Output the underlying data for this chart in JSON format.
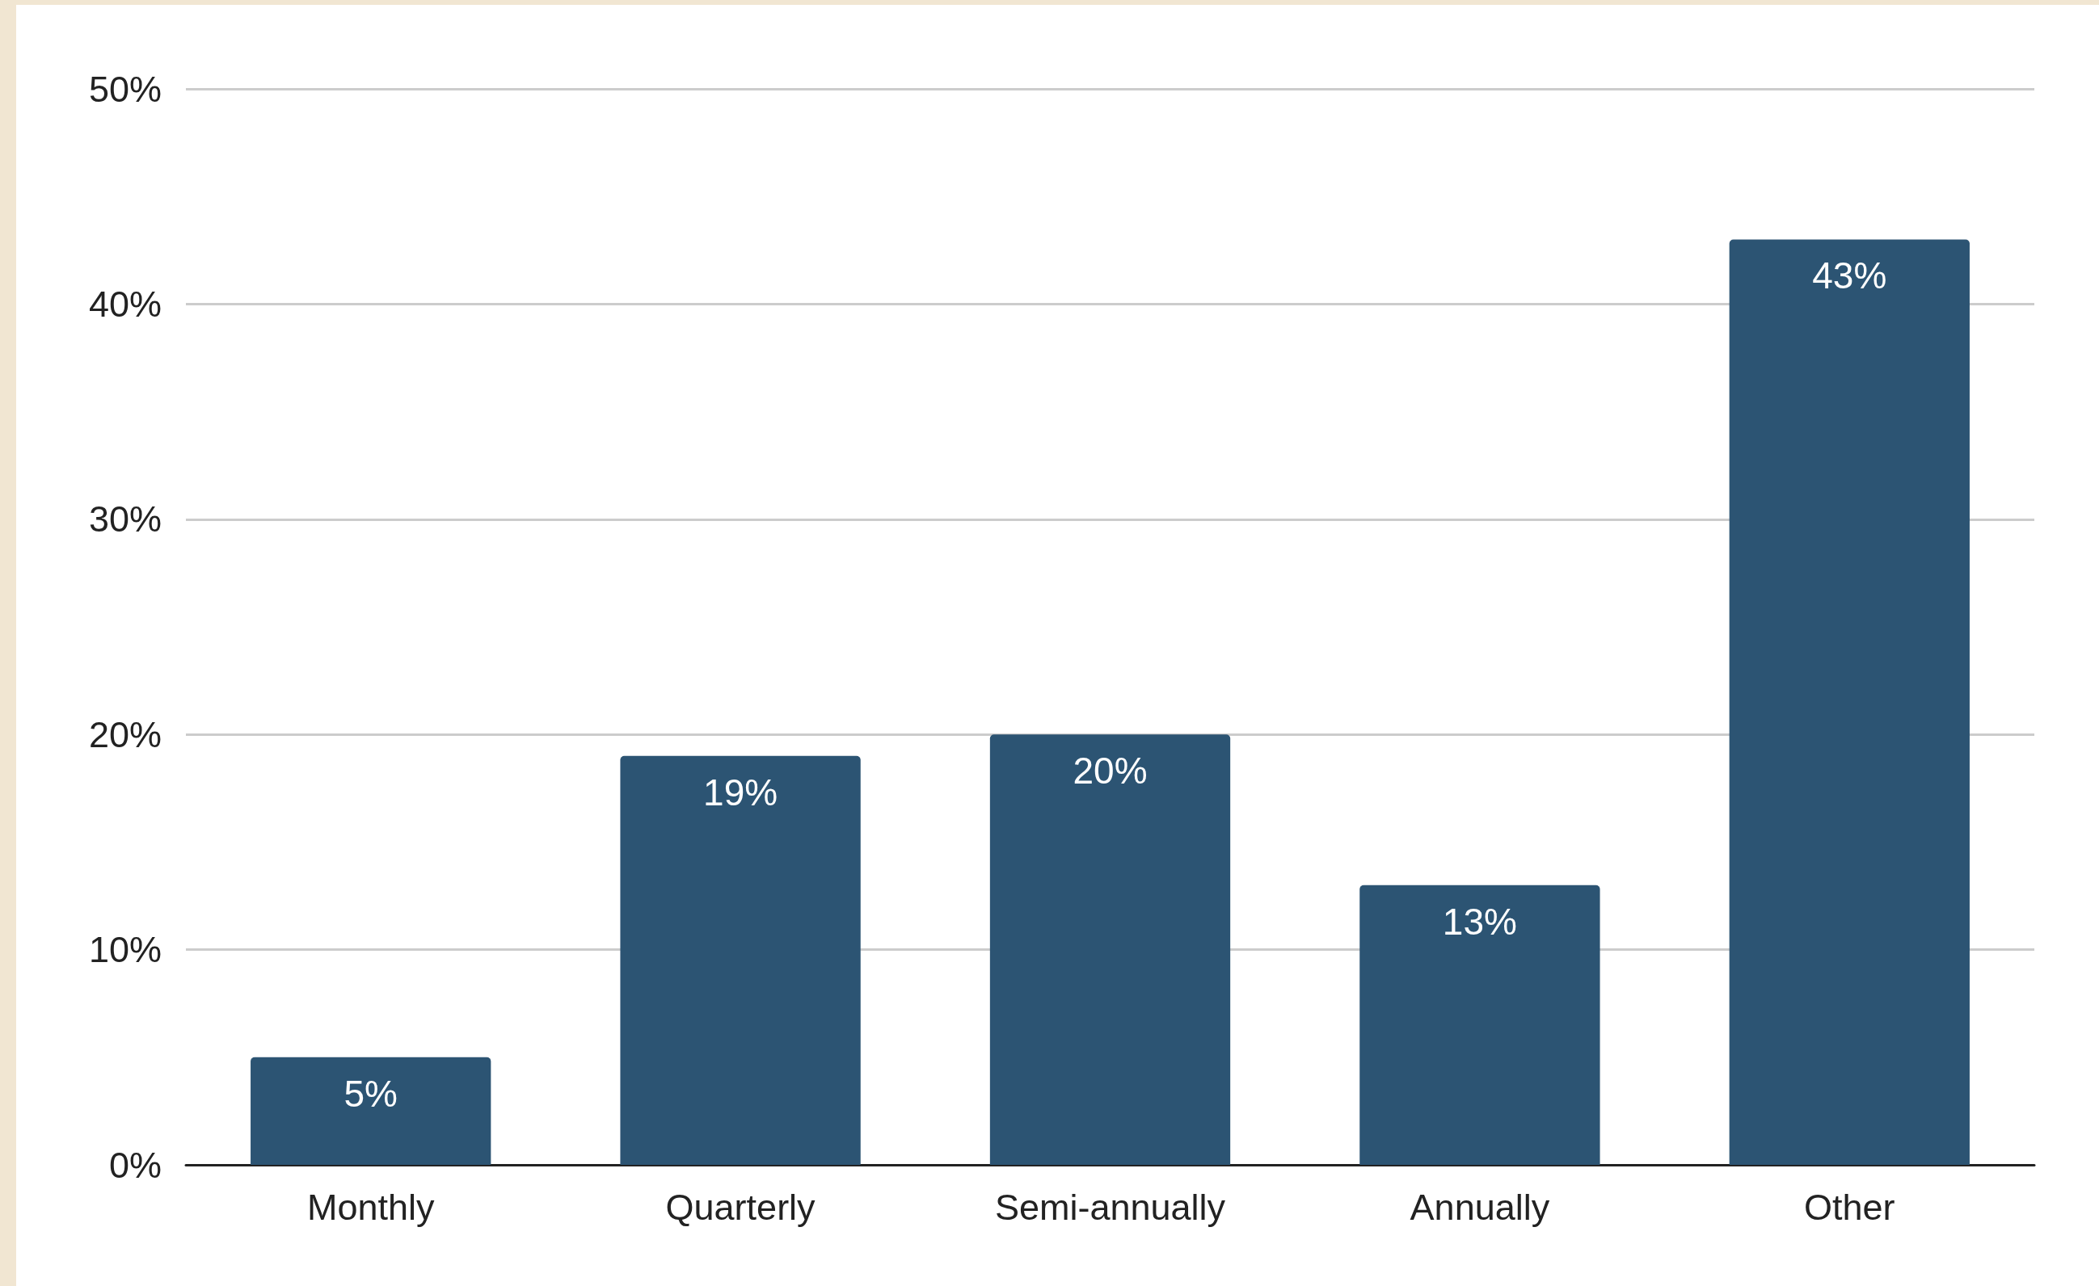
{
  "chart_data": {
    "type": "bar",
    "categories": [
      "Monthly",
      "Quarterly",
      "Semi-annually",
      "Annually",
      "Other"
    ],
    "values": [
      5,
      19,
      20,
      13,
      43
    ],
    "value_labels": [
      "5%",
      "19%",
      "20%",
      "13%",
      "43%"
    ],
    "color": "#2c5473",
    "ylim": [
      0,
      50
    ],
    "yticks": [
      {
        "value": 0,
        "label": "0%"
      },
      {
        "value": 10,
        "label": "10%"
      },
      {
        "value": 20,
        "label": "20%"
      },
      {
        "value": 30,
        "label": "30%"
      },
      {
        "value": 40,
        "label": "40%"
      },
      {
        "value": 50,
        "label": "50%"
      }
    ],
    "grid": "y"
  }
}
